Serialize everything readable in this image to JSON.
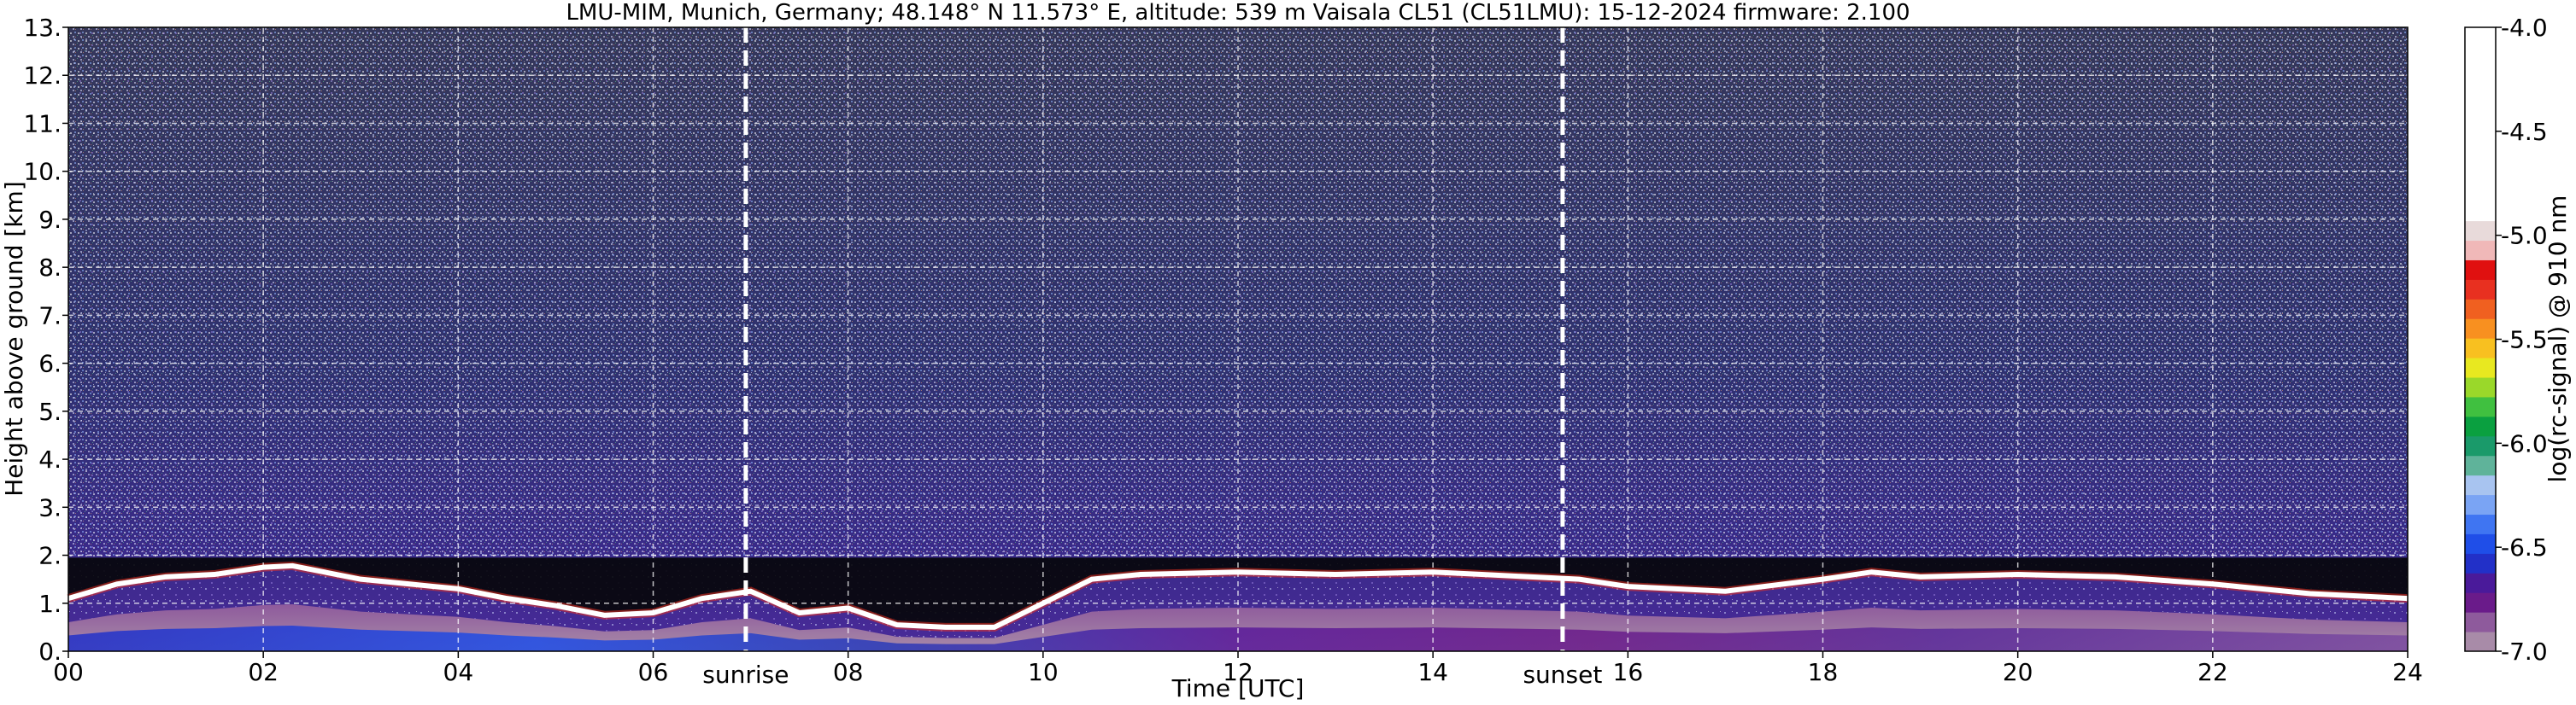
{
  "chart_data": {
    "type": "heatmap",
    "title": "LMU-MIM, Munich, Germany; 48.148° N 11.573° E, altitude: 539 m    Vaisala CL51 (CL51LMU): 15-12-2024    firmware: 2.100",
    "xlabel": "Time [UTC]",
    "ylabel": "Height above ground [km]",
    "xlim": [
      0,
      24
    ],
    "ylim": [
      0,
      13
    ],
    "x_ticks": [
      "00",
      "02",
      "04",
      "06",
      "08",
      "10",
      "12",
      "14",
      "16",
      "18",
      "20",
      "22",
      "24"
    ],
    "y_ticks": [
      "0.",
      "1.",
      "2.",
      "3.",
      "4.",
      "5.",
      "6.",
      "7.",
      "8.",
      "9.",
      "10.",
      "11.",
      "12.",
      "13."
    ],
    "grid": true,
    "colorbar": {
      "label": "log(rc-signal) @ 910 nm",
      "range": [
        -7.0,
        -4.0
      ],
      "ticks": [
        "-4.0",
        "-4.5",
        "-5.0",
        "-5.5",
        "-6.0",
        "-6.5",
        "-7.0"
      ],
      "colors": [
        "#a88ba8",
        "#8e5a9c",
        "#6a1b8a",
        "#4a1a9a",
        "#2230c8",
        "#1f4ee8",
        "#3f75f2",
        "#7aa4f4",
        "#a8c4f0",
        "#5fb39a",
        "#1a9a6a",
        "#0aa040",
        "#40c040",
        "#9ad82a",
        "#e8e820",
        "#f8c020",
        "#f89020",
        "#f06020",
        "#e83020",
        "#e01010",
        "#f0b8b8",
        "#e8dada",
        "#ffffff"
      ]
    },
    "vertical_markers": [
      {
        "time": 6.95,
        "label": "sunrise"
      },
      {
        "time": 15.33,
        "label": "sunset"
      }
    ],
    "cloud_layer_km": [
      [
        0.0,
        1.1
      ],
      [
        0.5,
        1.4
      ],
      [
        1.0,
        1.55
      ],
      [
        1.5,
        1.6
      ],
      [
        2.0,
        1.75
      ],
      [
        2.3,
        1.78
      ],
      [
        3.0,
        1.5
      ],
      [
        3.5,
        1.4
      ],
      [
        4.0,
        1.3
      ],
      [
        4.5,
        1.1
      ],
      [
        5.0,
        0.95
      ],
      [
        5.5,
        0.75
      ],
      [
        6.0,
        0.8
      ],
      [
        6.5,
        1.1
      ],
      [
        7.0,
        1.25
      ],
      [
        7.5,
        0.8
      ],
      [
        8.0,
        0.9
      ],
      [
        8.5,
        0.55
      ],
      [
        9.0,
        0.5
      ],
      [
        9.5,
        0.5
      ],
      [
        10.5,
        1.5
      ],
      [
        11.0,
        1.6
      ],
      [
        12.0,
        1.65
      ],
      [
        13.0,
        1.6
      ],
      [
        14.0,
        1.65
      ],
      [
        14.5,
        1.6
      ],
      [
        15.5,
        1.5
      ],
      [
        16.0,
        1.35
      ],
      [
        17.0,
        1.25
      ],
      [
        18.0,
        1.5
      ],
      [
        18.5,
        1.65
      ],
      [
        19.0,
        1.55
      ],
      [
        20.0,
        1.6
      ],
      [
        21.0,
        1.55
      ],
      [
        22.0,
        1.4
      ],
      [
        23.0,
        1.2
      ],
      [
        24.0,
        1.1
      ]
    ]
  }
}
